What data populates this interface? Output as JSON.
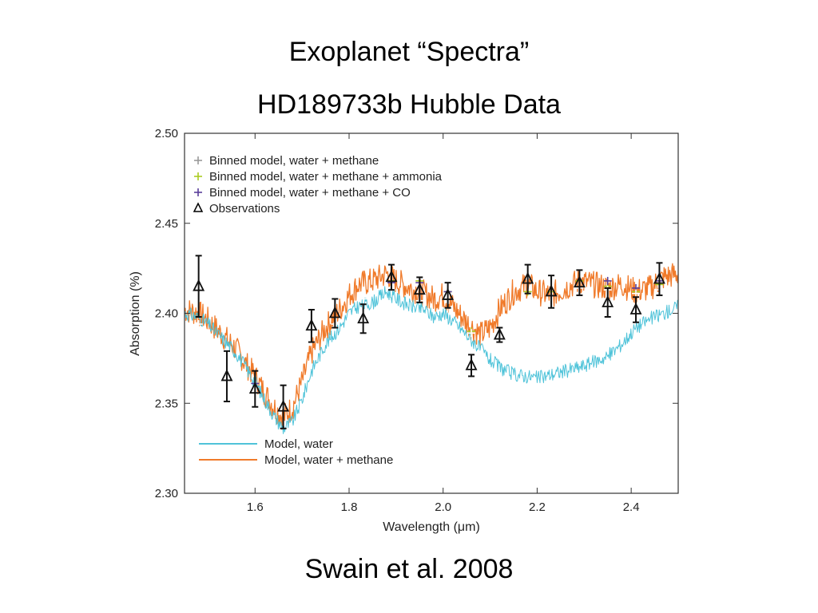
{
  "slide": {
    "title_line1": "Exoplanet “Spectra”",
    "title_line2": "HD189733b Hubble Data",
    "citation": "Swain et al. 2008"
  },
  "chart_data": {
    "type": "line",
    "xlabel": "Wavelength (μm)",
    "ylabel": "Absorption (%)",
    "xlim": [
      1.45,
      2.5
    ],
    "ylim": [
      2.3,
      2.5
    ],
    "xticks": [
      "1.6",
      "1.8",
      "2.0",
      "2.2",
      "2.4"
    ],
    "yticks": [
      "2.30",
      "2.35",
      "2.40",
      "2.45",
      "2.50"
    ],
    "grid": false,
    "legend_top": {
      "placement": "top-left",
      "entries": [
        {
          "label": "Binned model, water + methane",
          "color": "#999999",
          "marker": "plus"
        },
        {
          "label": "Binned model, water + methane + ammonia",
          "color": "#aacc22",
          "marker": "plus"
        },
        {
          "label": "Binned model, water + methane + CO",
          "color": "#5a3f9a",
          "marker": "plus"
        },
        {
          "label": "Observations",
          "color": "#000000",
          "marker": "triangle"
        }
      ]
    },
    "legend_bottom": {
      "placement": "bottom-left",
      "entries": [
        {
          "label": "Model, water",
          "color": "#4fc3d9"
        },
        {
          "label": "Model, water + methane",
          "color": "#f07a2a"
        }
      ]
    },
    "series": [
      {
        "name": "Model, water",
        "color": "#4fc3d9",
        "x": [
          1.45,
          1.48,
          1.5,
          1.53,
          1.56,
          1.58,
          1.6,
          1.62,
          1.64,
          1.66,
          1.68,
          1.7,
          1.72,
          1.75,
          1.78,
          1.8,
          1.82,
          1.85,
          1.88,
          1.9,
          1.93,
          1.96,
          1.98,
          2.0,
          2.02,
          2.05,
          2.08,
          2.1,
          2.12,
          2.15,
          2.18,
          2.2,
          2.23,
          2.26,
          2.29,
          2.32,
          2.35,
          2.38,
          2.41,
          2.44,
          2.47,
          2.5
        ],
        "y": [
          2.4,
          2.398,
          2.394,
          2.386,
          2.378,
          2.37,
          2.362,
          2.352,
          2.343,
          2.336,
          2.34,
          2.352,
          2.368,
          2.383,
          2.392,
          2.4,
          2.404,
          2.406,
          2.412,
          2.408,
          2.404,
          2.402,
          2.398,
          2.4,
          2.396,
          2.388,
          2.38,
          2.374,
          2.37,
          2.366,
          2.365,
          2.364,
          2.366,
          2.368,
          2.37,
          2.373,
          2.376,
          2.383,
          2.392,
          2.397,
          2.4,
          2.404
        ]
      },
      {
        "name": "Model, water + methane",
        "color": "#f07a2a",
        "x": [
          1.45,
          1.48,
          1.5,
          1.53,
          1.56,
          1.58,
          1.6,
          1.62,
          1.64,
          1.66,
          1.68,
          1.7,
          1.72,
          1.75,
          1.78,
          1.8,
          1.82,
          1.85,
          1.88,
          1.9,
          1.93,
          1.96,
          1.98,
          2.0,
          2.02,
          2.05,
          2.08,
          2.1,
          2.12,
          2.15,
          2.18,
          2.2,
          2.23,
          2.26,
          2.29,
          2.32,
          2.35,
          2.38,
          2.41,
          2.44,
          2.47,
          2.5
        ],
        "y": [
          2.402,
          2.4,
          2.396,
          2.388,
          2.38,
          2.372,
          2.365,
          2.356,
          2.348,
          2.342,
          2.348,
          2.362,
          2.378,
          2.392,
          2.402,
          2.41,
          2.416,
          2.418,
          2.422,
          2.418,
          2.414,
          2.411,
          2.408,
          2.41,
          2.404,
          2.395,
          2.388,
          2.392,
          2.402,
          2.412,
          2.416,
          2.412,
          2.41,
          2.414,
          2.418,
          2.416,
          2.414,
          2.416,
          2.412,
          2.414,
          2.42,
          2.422
        ]
      },
      {
        "name": "Binned model, water + methane",
        "color": "#ffffff",
        "x": [
          1.48,
          1.54,
          1.6,
          1.66,
          1.72,
          1.77,
          1.83,
          1.89,
          1.95,
          2.01,
          2.06,
          2.12,
          2.18,
          2.23,
          2.29,
          2.35,
          2.41,
          2.46
        ],
        "y": [
          2.394,
          2.374,
          2.356,
          2.358,
          2.391,
          2.394,
          2.408,
          2.413,
          2.407,
          2.403,
          2.389,
          2.387,
          2.405,
          2.4,
          2.414,
          2.413,
          2.411,
          2.413
        ]
      },
      {
        "name": "Binned model, water + methane + ammonia",
        "color": "#aacc22",
        "x": [
          1.89,
          1.95,
          2.01,
          2.06,
          2.18,
          2.23,
          2.29,
          2.35,
          2.41,
          2.46
        ],
        "y": [
          2.418,
          2.418,
          2.412,
          2.39,
          2.412,
          2.412,
          2.418,
          2.415,
          2.412,
          2.416
        ]
      },
      {
        "name": "Binned model, water + methane + CO",
        "color": "#5a3f9a",
        "x": [
          1.6,
          1.89,
          1.95,
          2.01,
          2.35,
          2.41,
          2.46
        ],
        "y": [
          2.361,
          2.417,
          2.417,
          2.412,
          2.418,
          2.414,
          2.418
        ]
      },
      {
        "name": "Observations",
        "color": "#000000",
        "x": [
          1.48,
          1.54,
          1.6,
          1.66,
          1.72,
          1.77,
          1.83,
          1.89,
          1.95,
          2.01,
          2.06,
          2.12,
          2.18,
          2.23,
          2.29,
          2.35,
          2.41,
          2.46
        ],
        "y": [
          2.415,
          2.365,
          2.358,
          2.348,
          2.393,
          2.4,
          2.397,
          2.42,
          2.413,
          2.41,
          2.371,
          2.388,
          2.419,
          2.412,
          2.417,
          2.406,
          2.402,
          2.419
        ],
        "err": [
          0.017,
          0.014,
          0.01,
          0.012,
          0.009,
          0.008,
          0.008,
          0.007,
          0.007,
          0.007,
          0.006,
          0.004,
          0.008,
          0.009,
          0.007,
          0.008,
          0.007,
          0.009
        ]
      }
    ]
  }
}
